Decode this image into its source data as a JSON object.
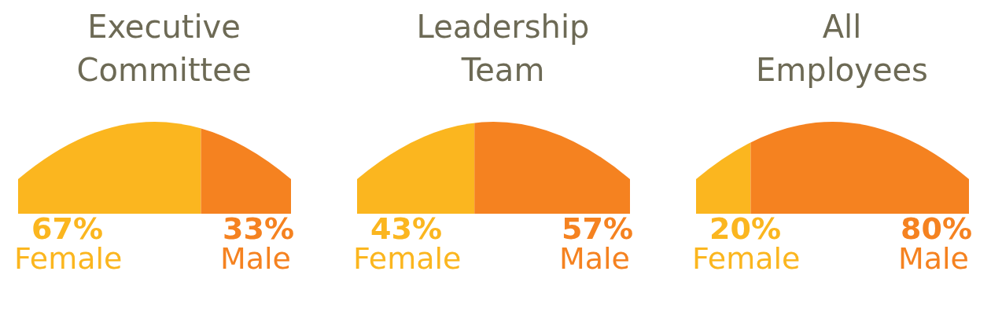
{
  "chart_data": [
    {
      "type": "bar",
      "orientation": "horizontal",
      "stacked": true,
      "title": "Executive Committee",
      "categories": [
        null
      ],
      "legend": "bottom",
      "series": [
        {
          "name": "Female",
          "color": "#fbb61f",
          "values": [
            67
          ],
          "value_labels": [
            "67%"
          ]
        },
        {
          "name": "Male",
          "color": "#f58220",
          "values": [
            33
          ],
          "value_labels": [
            "33%"
          ]
        }
      ]
    },
    {
      "type": "bar",
      "orientation": "horizontal",
      "stacked": true,
      "title": "Leadership Team",
      "categories": [
        null
      ],
      "legend": "bottom",
      "series": [
        {
          "name": "Female",
          "color": "#fbb61f",
          "values": [
            43
          ],
          "value_labels": [
            "43%"
          ]
        },
        {
          "name": "Male",
          "color": "#f58220",
          "values": [
            57
          ],
          "value_labels": [
            "57%"
          ]
        }
      ]
    },
    {
      "type": "bar",
      "orientation": "horizontal",
      "stacked": true,
      "title": "All Employees",
      "categories": [
        null
      ],
      "legend": "bottom",
      "series": [
        {
          "name": "Female",
          "color": "#fbb61f",
          "values": [
            20
          ],
          "value_labels": [
            "20%"
          ]
        },
        {
          "name": "Male",
          "color": "#f58220",
          "values": [
            80
          ],
          "value_labels": [
            "80%"
          ]
        }
      ]
    }
  ]
}
